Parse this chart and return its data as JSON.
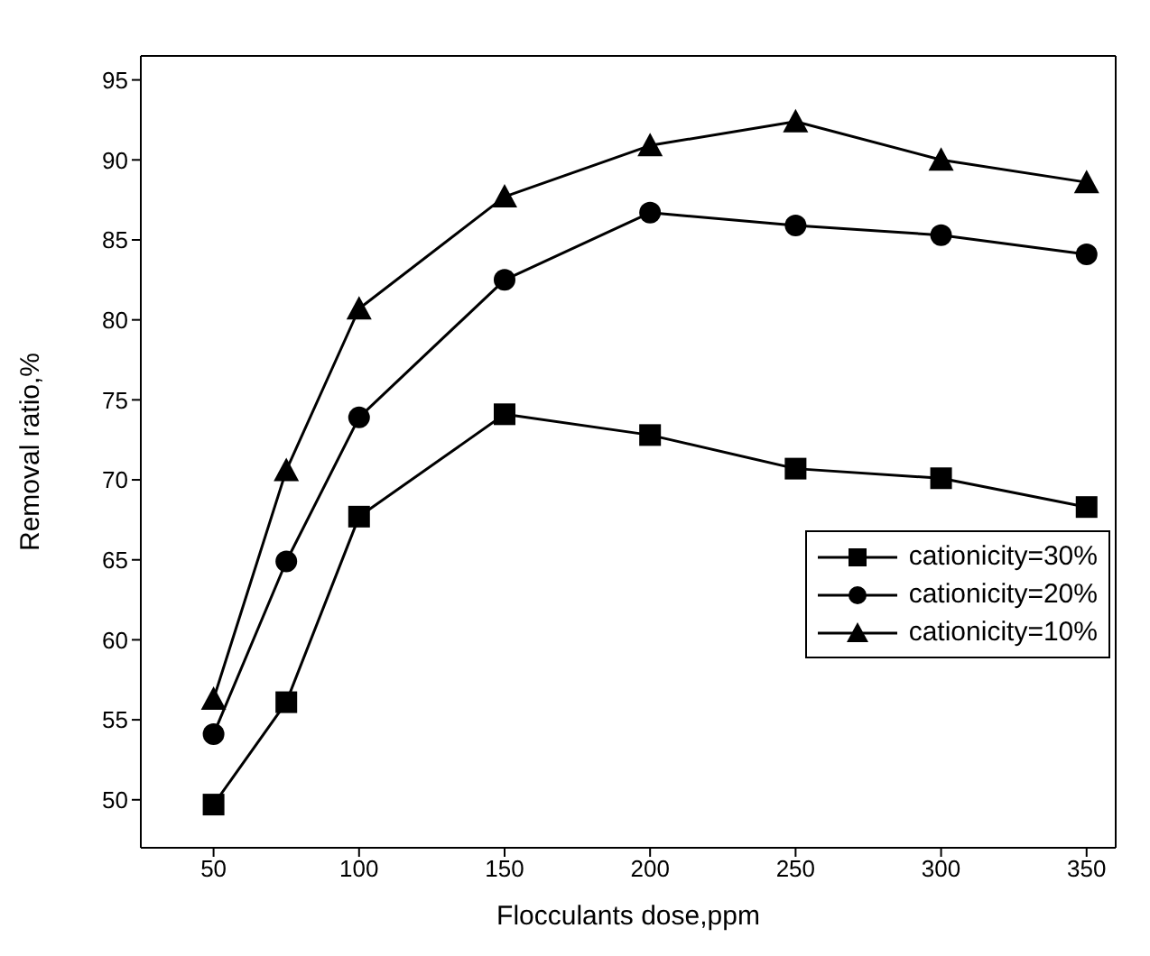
{
  "chart_data": {
    "type": "line",
    "xlabel": "Flocculants dose,ppm",
    "ylabel": "Removal ratio,%",
    "x": [
      50,
      75,
      100,
      150,
      200,
      250,
      300,
      350
    ],
    "xlim": [
      25,
      360
    ],
    "xticks": [
      50,
      100,
      150,
      200,
      250,
      300,
      350
    ],
    "ylim": [
      47,
      96.5
    ],
    "yticks": [
      50,
      55,
      60,
      65,
      70,
      75,
      80,
      85,
      90,
      95
    ],
    "grid": false,
    "legend": "right",
    "line_style": "solid",
    "series": [
      {
        "name": "cationicity=30%",
        "color": "#000000",
        "marker": "square",
        "values": [
          49.7,
          56.1,
          67.7,
          74.1,
          72.8,
          70.7,
          70.1,
          68.3
        ]
      },
      {
        "name": "cationicity=20%",
        "color": "#000000",
        "marker": "circle",
        "values": [
          54.1,
          64.9,
          73.9,
          82.5,
          86.7,
          85.9,
          85.3,
          84.1
        ]
      },
      {
        "name": "cationicity=10%",
        "color": "#000000",
        "marker": "triangle",
        "values": [
          56.3,
          70.6,
          80.7,
          87.7,
          90.9,
          92.4,
          90.0,
          88.6
        ]
      }
    ]
  }
}
